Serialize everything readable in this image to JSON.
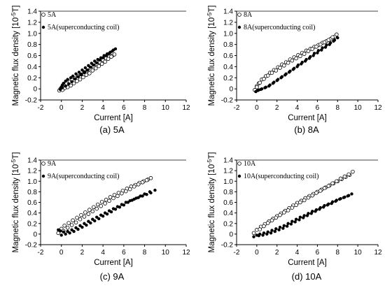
{
  "chart_data": [
    {
      "type": "scatter",
      "caption": "(a) 5A",
      "xlabel": "Current [A]",
      "ylabel": "Magnetic flux density [10^-5T]",
      "xlim": [
        -2,
        12
      ],
      "ylim": [
        -0.2,
        1.4
      ],
      "xticks": [
        "-2",
        "0",
        "2",
        "4",
        "6",
        "8",
        "10",
        "12"
      ],
      "yticks": [
        "-0.2",
        "0",
        "0.2",
        "0.4",
        "0.6",
        "0.8",
        "1.0",
        "1.2",
        "1.4"
      ],
      "legend_position": "top-left",
      "grid": false,
      "series": [
        {
          "name": "5A",
          "marker": "open-circle",
          "x": [
            -0.2,
            -0.1,
            0.0,
            0.1,
            0.3,
            0.5,
            0.8,
            1.0,
            1.3,
            1.6,
            1.9,
            2.2,
            2.5,
            2.8,
            3.1,
            3.4,
            3.7,
            4.0,
            4.3,
            4.6,
            4.9,
            5.1,
            4.8,
            4.5,
            4.2,
            3.9,
            3.6,
            3.3,
            3.0,
            2.7,
            2.4,
            2.1,
            1.8,
            1.5,
            1.2,
            0.9,
            0.6,
            0.3,
            0.1
          ],
          "y": [
            -0.03,
            0.0,
            0.02,
            0.05,
            0.08,
            0.1,
            0.13,
            0.16,
            0.19,
            0.23,
            0.26,
            0.3,
            0.33,
            0.37,
            0.41,
            0.45,
            0.48,
            0.52,
            0.55,
            0.58,
            0.6,
            0.62,
            0.58,
            0.54,
            0.49,
            0.45,
            0.41,
            0.37,
            0.33,
            0.28,
            0.25,
            0.21,
            0.17,
            0.14,
            0.1,
            0.06,
            0.03,
            0.01,
            -0.02
          ]
        },
        {
          "name": "5A(superconducting coil)",
          "marker": "filled-circle",
          "x": [
            -0.1,
            0.0,
            0.1,
            0.2,
            0.4,
            0.6,
            0.9,
            1.1,
            1.4,
            1.7,
            2.0,
            2.3,
            2.6,
            2.9,
            3.2,
            3.5,
            3.8,
            4.1,
            4.4,
            4.7,
            5.0,
            5.2,
            4.9,
            4.6,
            4.3,
            4.0,
            3.7,
            3.4,
            3.1,
            2.8,
            2.5,
            2.2,
            1.9,
            1.6,
            1.3,
            1.0,
            0.7,
            0.4,
            0.1
          ],
          "y": [
            -0.01,
            0.03,
            0.07,
            0.1,
            0.14,
            0.17,
            0.2,
            0.23,
            0.27,
            0.3,
            0.34,
            0.38,
            0.42,
            0.46,
            0.5,
            0.53,
            0.56,
            0.6,
            0.63,
            0.66,
            0.7,
            0.72,
            0.68,
            0.64,
            0.6,
            0.56,
            0.52,
            0.47,
            0.43,
            0.39,
            0.34,
            0.3,
            0.26,
            0.22,
            0.18,
            0.13,
            0.09,
            0.05,
            0.02
          ]
        }
      ]
    },
    {
      "type": "scatter",
      "caption": "(b) 8A",
      "xlabel": "Current [A]",
      "ylabel": "Magnetic flux density [10^-5T]",
      "xlim": [
        -2,
        12
      ],
      "ylim": [
        -0.2,
        1.4
      ],
      "xticks": [
        "-2",
        "0",
        "2",
        "4",
        "6",
        "8",
        "10",
        "12"
      ],
      "yticks": [
        "-0.2",
        "0",
        "0.2",
        "0.4",
        "0.6",
        "0.8",
        "1.0",
        "1.2",
        "1.4"
      ],
      "legend_position": "top-left",
      "grid": false,
      "series": [
        {
          "name": "8A",
          "marker": "open-circle",
          "x": [
            -0.2,
            0.0,
            0.2,
            0.5,
            0.9,
            1.3,
            1.7,
            2.1,
            2.5,
            2.9,
            3.3,
            3.7,
            4.1,
            4.5,
            4.9,
            5.3,
            5.7,
            6.1,
            6.5,
            6.9,
            7.3,
            7.7,
            7.9,
            7.5,
            7.1,
            6.7,
            6.3,
            5.9,
            5.5,
            5.1,
            4.7,
            4.3,
            3.9,
            3.5,
            3.1,
            2.7,
            2.3,
            1.9,
            1.5,
            1.1,
            0.7,
            0.3,
            0.0
          ],
          "y": [
            -0.02,
            0.05,
            0.1,
            0.17,
            0.23,
            0.29,
            0.34,
            0.39,
            0.44,
            0.48,
            0.53,
            0.57,
            0.61,
            0.65,
            0.69,
            0.72,
            0.76,
            0.79,
            0.83,
            0.86,
            0.9,
            0.94,
            0.98,
            0.93,
            0.88,
            0.84,
            0.8,
            0.76,
            0.72,
            0.68,
            0.63,
            0.59,
            0.55,
            0.51,
            0.47,
            0.42,
            0.38,
            0.33,
            0.29,
            0.24,
            0.18,
            0.11,
            0.03
          ]
        },
        {
          "name": "8A(superconducting coil)",
          "marker": "filled-circle",
          "x": [
            -0.1,
            0.1,
            0.4,
            0.8,
            1.2,
            1.6,
            2.0,
            2.4,
            2.8,
            3.2,
            3.6,
            4.0,
            4.4,
            4.8,
            5.2,
            5.6,
            6.0,
            6.4,
            6.8,
            7.2,
            7.6,
            8.0,
            7.7,
            7.3,
            6.9,
            6.5,
            6.1,
            5.7,
            5.3,
            4.9,
            4.5,
            4.1,
            3.7,
            3.3,
            2.9,
            2.5,
            2.1,
            1.7,
            1.3,
            0.9,
            0.5,
            0.2
          ],
          "y": [
            -0.05,
            -0.03,
            -0.01,
            0.02,
            0.05,
            0.1,
            0.15,
            0.2,
            0.25,
            0.3,
            0.35,
            0.4,
            0.45,
            0.5,
            0.55,
            0.6,
            0.65,
            0.7,
            0.75,
            0.8,
            0.86,
            0.92,
            0.88,
            0.83,
            0.79,
            0.74,
            0.69,
            0.64,
            0.58,
            0.53,
            0.48,
            0.43,
            0.37,
            0.32,
            0.27,
            0.22,
            0.17,
            0.12,
            0.07,
            0.03,
            0.0,
            -0.02
          ]
        }
      ]
    },
    {
      "type": "scatter",
      "caption": "(c) 9A",
      "xlabel": "Current [A]",
      "ylabel": "Magnetic flux density [10^-5T]",
      "xlim": [
        -2,
        12
      ],
      "ylim": [
        -0.2,
        1.4
      ],
      "xticks": [
        "-2",
        "0",
        "2",
        "4",
        "6",
        "8",
        "10",
        "12"
      ],
      "yticks": [
        "-0.2",
        "0",
        "0.2",
        "0.4",
        "0.6",
        "0.8",
        "1.0",
        "1.2",
        "1.4"
      ],
      "legend_position": "top-left",
      "grid": false,
      "series": [
        {
          "name": "9A",
          "marker": "open-circle",
          "x": [
            -0.3,
            0.0,
            0.3,
            0.7,
            1.1,
            1.5,
            1.9,
            2.3,
            2.7,
            3.1,
            3.5,
            3.9,
            4.3,
            4.7,
            5.1,
            5.5,
            5.9,
            6.3,
            6.7,
            7.1,
            7.5,
            7.9,
            8.3,
            8.6,
            8.2,
            7.8,
            7.4,
            7.0,
            6.6,
            6.2,
            5.8,
            5.4,
            5.0,
            4.6,
            4.2,
            3.8,
            3.4,
            3.0,
            2.6,
            2.2,
            1.8,
            1.4,
            1.0,
            0.6,
            0.2
          ],
          "y": [
            0.02,
            0.1,
            0.16,
            0.21,
            0.26,
            0.31,
            0.36,
            0.41,
            0.46,
            0.51,
            0.56,
            0.61,
            0.65,
            0.7,
            0.74,
            0.78,
            0.82,
            0.86,
            0.9,
            0.93,
            0.97,
            1.0,
            1.03,
            1.06,
            1.02,
            0.98,
            0.94,
            0.9,
            0.85,
            0.81,
            0.77,
            0.72,
            0.68,
            0.63,
            0.58,
            0.53,
            0.48,
            0.43,
            0.38,
            0.33,
            0.28,
            0.22,
            0.17,
            0.12,
            0.06
          ]
        },
        {
          "name": "9A(superconducting coil)",
          "marker": "filled-circle",
          "x": [
            -0.3,
            -0.1,
            0.2,
            0.6,
            1.0,
            1.4,
            1.8,
            2.2,
            2.6,
            3.0,
            3.4,
            3.8,
            4.2,
            4.6,
            5.0,
            5.4,
            5.8,
            6.2,
            6.6,
            7.0,
            7.4,
            7.8,
            8.2,
            8.6,
            9.0,
            8.5,
            8.0,
            7.6,
            7.2,
            6.8,
            6.4,
            6.0,
            5.6,
            5.2,
            4.8,
            4.4,
            4.0,
            3.6,
            3.2,
            2.8,
            2.4,
            2.0,
            1.6,
            1.2,
            0.8,
            0.4,
            0.0
          ],
          "y": [
            0.08,
            0.06,
            0.04,
            0.05,
            0.08,
            0.12,
            0.16,
            0.2,
            0.24,
            0.28,
            0.32,
            0.36,
            0.4,
            0.44,
            0.48,
            0.52,
            0.56,
            0.6,
            0.63,
            0.66,
            0.69,
            0.72,
            0.75,
            0.78,
            0.83,
            0.8,
            0.76,
            0.72,
            0.68,
            0.64,
            0.6,
            0.55,
            0.51,
            0.47,
            0.42,
            0.38,
            0.34,
            0.29,
            0.25,
            0.21,
            0.17,
            0.13,
            0.09,
            0.05,
            0.02,
            0.0,
            -0.02
          ]
        }
      ]
    },
    {
      "type": "scatter",
      "caption": "(d) 10A",
      "xlabel": "Current [A]",
      "ylabel": "Magnetic flux density [10^-5T]",
      "xlim": [
        -2,
        12
      ],
      "ylim": [
        -0.2,
        1.4
      ],
      "xticks": [
        "-2",
        "0",
        "2",
        "4",
        "6",
        "8",
        "10",
        "12"
      ],
      "yticks": [
        "-0.2",
        "0",
        "0.2",
        "0.4",
        "0.6",
        "0.8",
        "1.0",
        "1.2",
        "1.4"
      ],
      "legend_position": "top-left",
      "grid": false,
      "series": [
        {
          "name": "10A",
          "marker": "open-circle",
          "x": [
            -0.3,
            0.0,
            0.4,
            0.8,
            1.2,
            1.6,
            2.0,
            2.4,
            2.8,
            3.2,
            3.6,
            4.0,
            4.4,
            4.8,
            5.2,
            5.6,
            6.0,
            6.4,
            6.8,
            7.2,
            7.6,
            8.0,
            8.4,
            8.8,
            9.2,
            9.5,
            9.1,
            8.7,
            8.3,
            7.9,
            7.5,
            7.1,
            6.7,
            6.3,
            5.9,
            5.5,
            5.1,
            4.7,
            4.3,
            3.9,
            3.5,
            3.1,
            2.7,
            2.3,
            1.9,
            1.5,
            1.1,
            0.7,
            0.3
          ],
          "y": [
            0.02,
            0.08,
            0.14,
            0.19,
            0.24,
            0.29,
            0.34,
            0.39,
            0.44,
            0.49,
            0.54,
            0.59,
            0.63,
            0.68,
            0.72,
            0.76,
            0.8,
            0.84,
            0.88,
            0.92,
            0.96,
            1.0,
            1.04,
            1.08,
            1.12,
            1.18,
            1.13,
            1.09,
            1.05,
            1.0,
            0.96,
            0.91,
            0.87,
            0.82,
            0.78,
            0.73,
            0.69,
            0.64,
            0.6,
            0.55,
            0.5,
            0.45,
            0.41,
            0.36,
            0.31,
            0.26,
            0.21,
            0.15,
            0.09
          ]
        },
        {
          "name": "10A(superconducting coil)",
          "marker": "filled-circle",
          "x": [
            -0.3,
            0.0,
            0.3,
            0.7,
            1.1,
            1.5,
            1.9,
            2.3,
            2.7,
            3.1,
            3.5,
            3.9,
            4.3,
            4.7,
            5.1,
            5.5,
            5.9,
            6.3,
            6.7,
            7.1,
            7.5,
            7.9,
            8.3,
            8.7,
            9.1,
            9.4,
            9.0,
            8.6,
            8.2,
            7.8,
            7.4,
            7.0,
            6.6,
            6.2,
            5.8,
            5.4,
            5.0,
            4.6,
            4.2,
            3.8,
            3.4,
            3.0,
            2.6,
            2.2,
            1.8,
            1.4,
            1.0,
            0.6,
            0.2
          ],
          "y": [
            -0.05,
            -0.02,
            0.0,
            0.02,
            0.04,
            0.07,
            0.1,
            0.13,
            0.16,
            0.2,
            0.24,
            0.28,
            0.32,
            0.35,
            0.39,
            0.43,
            0.46,
            0.5,
            0.54,
            0.57,
            0.61,
            0.64,
            0.67,
            0.7,
            0.73,
            0.76,
            0.72,
            0.69,
            0.66,
            0.62,
            0.58,
            0.55,
            0.51,
            0.47,
            0.43,
            0.39,
            0.35,
            0.31,
            0.27,
            0.23,
            0.19,
            0.15,
            0.11,
            0.08,
            0.05,
            0.02,
            0.0,
            -0.02,
            -0.03
          ]
        }
      ]
    }
  ]
}
